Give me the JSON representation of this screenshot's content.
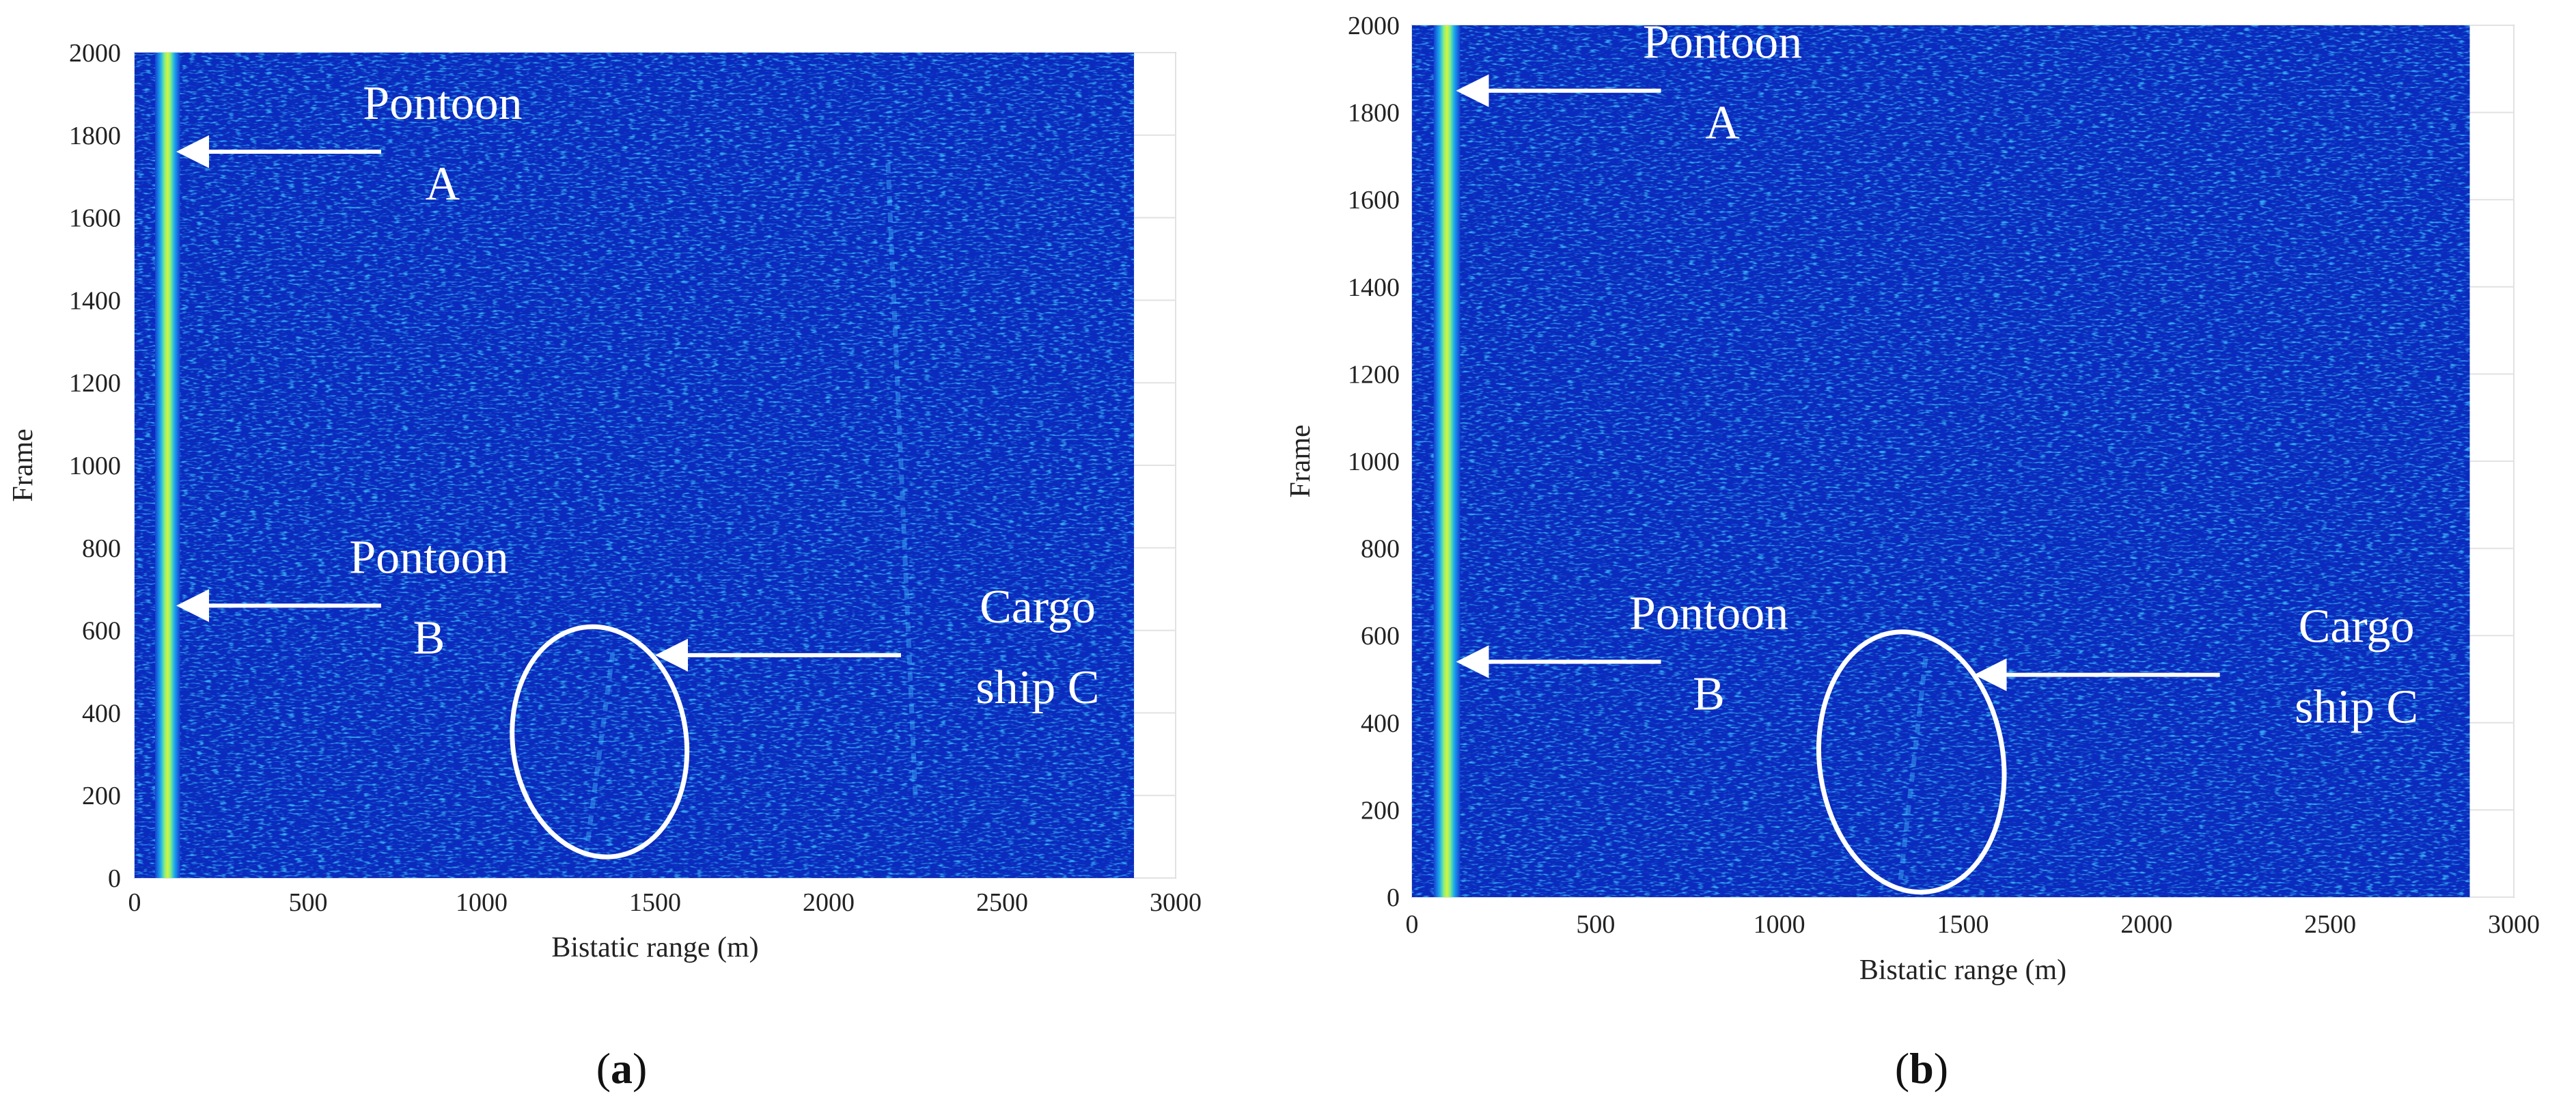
{
  "chart_data": [
    {
      "panel_label": "(a)",
      "type": "heatmap",
      "xlabel": "Bistatic range (m)",
      "ylabel": "Frame",
      "xlim": [
        0,
        3000
      ],
      "ylim": [
        0,
        2000
      ],
      "data_extent_x": [
        0,
        2880
      ],
      "xticks": [
        "0",
        "500",
        "1000",
        "1500",
        "2000",
        "2500",
        "3000"
      ],
      "yticks": [
        "0",
        "200",
        "400",
        "600",
        "800",
        "1000",
        "1200",
        "1400",
        "1600",
        "1800",
        "2000"
      ],
      "colormap": "jet",
      "strong_track_range_m": 95,
      "weak_tracks": [
        {
          "range_m": [
            1300,
            1380
          ],
          "frame": [
            50,
            560
          ]
        },
        {
          "range_m": [
            2250,
            2170
          ],
          "frame": [
            200,
            1750
          ]
        }
      ],
      "annotations": [
        {
          "lines": [
            "Pontoon",
            "A"
          ],
          "target": {
            "x": 120,
            "y": 1760
          }
        },
        {
          "lines": [
            "Pontoon",
            "B"
          ],
          "target": {
            "x": 120,
            "y": 660
          }
        },
        {
          "lines": [
            "Cargo",
            "ship C"
          ],
          "target": {
            "x": 1500,
            "y": 540
          }
        }
      ],
      "ellipse": {
        "center": [
          1340,
          330
        ],
        "semi_axes": [
          250,
          280
        ]
      }
    },
    {
      "panel_label": "(b)",
      "type": "heatmap",
      "xlabel": "Bistatic range (m)",
      "ylabel": "Frame",
      "xlim": [
        0,
        3000
      ],
      "ylim": [
        0,
        2000
      ],
      "data_extent_x": [
        0,
        2880
      ],
      "xticks": [
        "0",
        "500",
        "1000",
        "1500",
        "2000",
        "2500",
        "3000"
      ],
      "yticks": [
        "0",
        "200",
        "400",
        "600",
        "800",
        "1000",
        "1200",
        "1400",
        "1600",
        "1800",
        "2000"
      ],
      "colormap": "jet",
      "strong_track_range_m": 95,
      "weak_tracks": [
        {
          "range_m": [
            1330,
            1400
          ],
          "frame": [
            40,
            560
          ]
        }
      ],
      "annotations": [
        {
          "lines": [
            "Pontoon",
            "A"
          ],
          "target": {
            "x": 120,
            "y": 1850
          }
        },
        {
          "lines": [
            "Pontoon",
            "B"
          ],
          "target": {
            "x": 120,
            "y": 540
          }
        },
        {
          "lines": [
            "Cargo",
            "ship C"
          ],
          "target": {
            "x": 1530,
            "y": 510
          }
        }
      ],
      "ellipse": {
        "center": [
          1360,
          310
        ],
        "semi_axes": [
          250,
          300
        ]
      }
    }
  ]
}
